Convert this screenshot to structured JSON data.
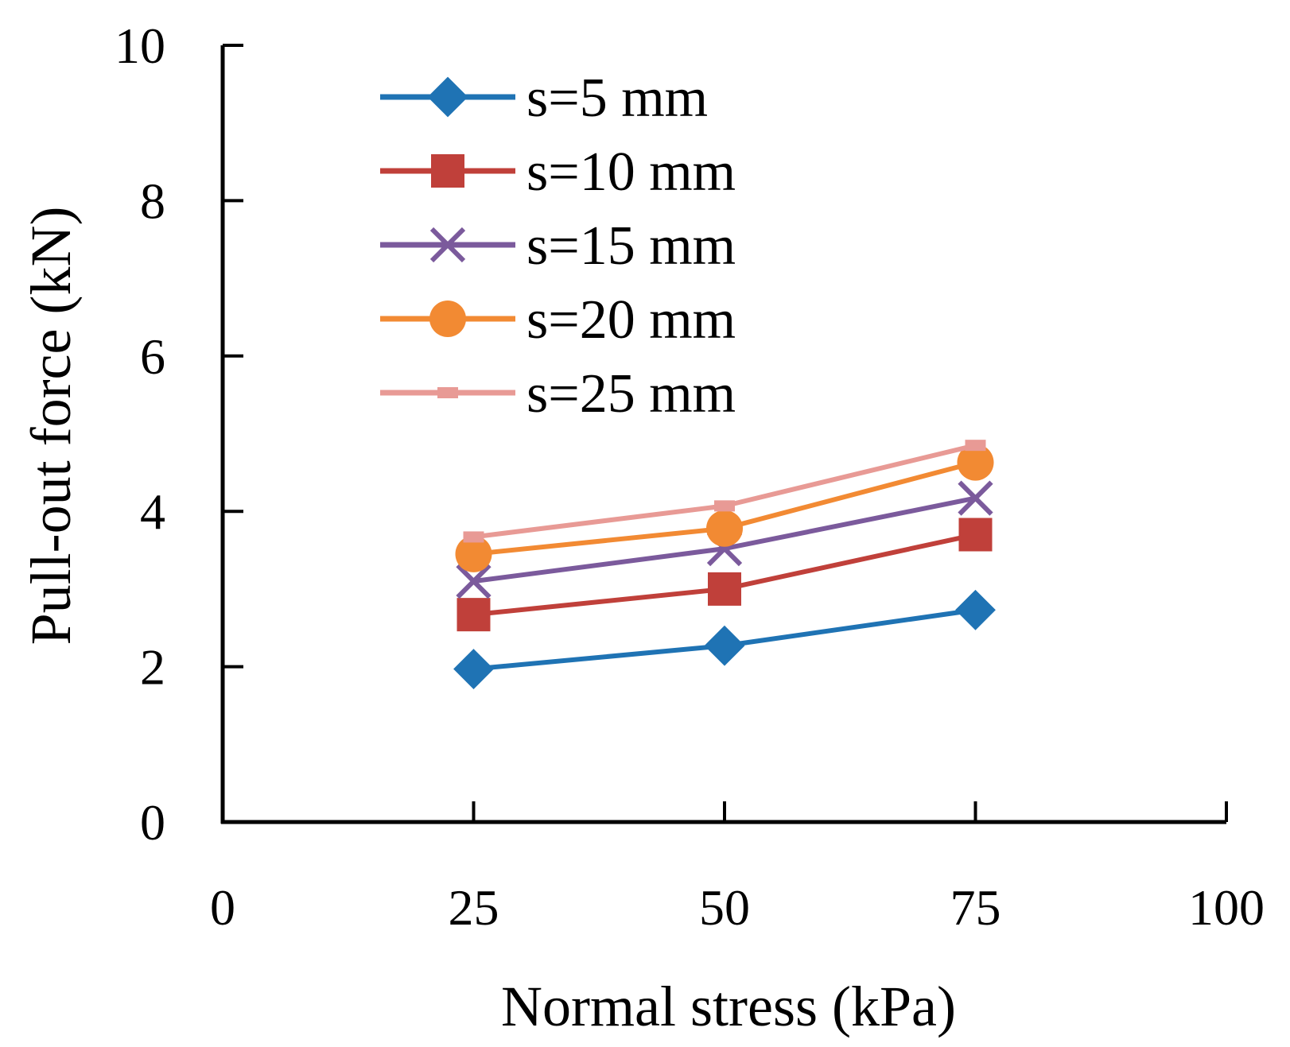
{
  "chart_data": {
    "type": "line",
    "title": "",
    "xlabel": "Normal stress (kPa)",
    "ylabel": "Pull-out force (kN)",
    "xlim": [
      0,
      100
    ],
    "ylim": [
      0,
      10
    ],
    "xticks": [
      0,
      25,
      50,
      75,
      100
    ],
    "yticks": [
      0,
      2,
      4,
      6,
      8,
      10
    ],
    "grid": false,
    "legend_position": "top-left",
    "x": [
      25,
      50,
      75
    ],
    "series": [
      {
        "name": "s=5 mm",
        "values": [
          1.97,
          2.27,
          2.73
        ],
        "color": "#1f73b4",
        "marker": "diamond"
      },
      {
        "name": "s=10 mm",
        "values": [
          2.67,
          3.0,
          3.7
        ],
        "color": "#c0403a",
        "marker": "square"
      },
      {
        "name": "s=15 mm",
        "values": [
          3.1,
          3.52,
          4.17
        ],
        "color": "#7b5a9c",
        "marker": "x"
      },
      {
        "name": "s=20 mm",
        "values": [
          3.45,
          3.78,
          4.63
        ],
        "color": "#f28a33",
        "marker": "circle"
      },
      {
        "name": "s=25 mm",
        "values": [
          3.67,
          4.07,
          4.85
        ],
        "color": "#e89a95",
        "marker": "dash"
      }
    ]
  }
}
